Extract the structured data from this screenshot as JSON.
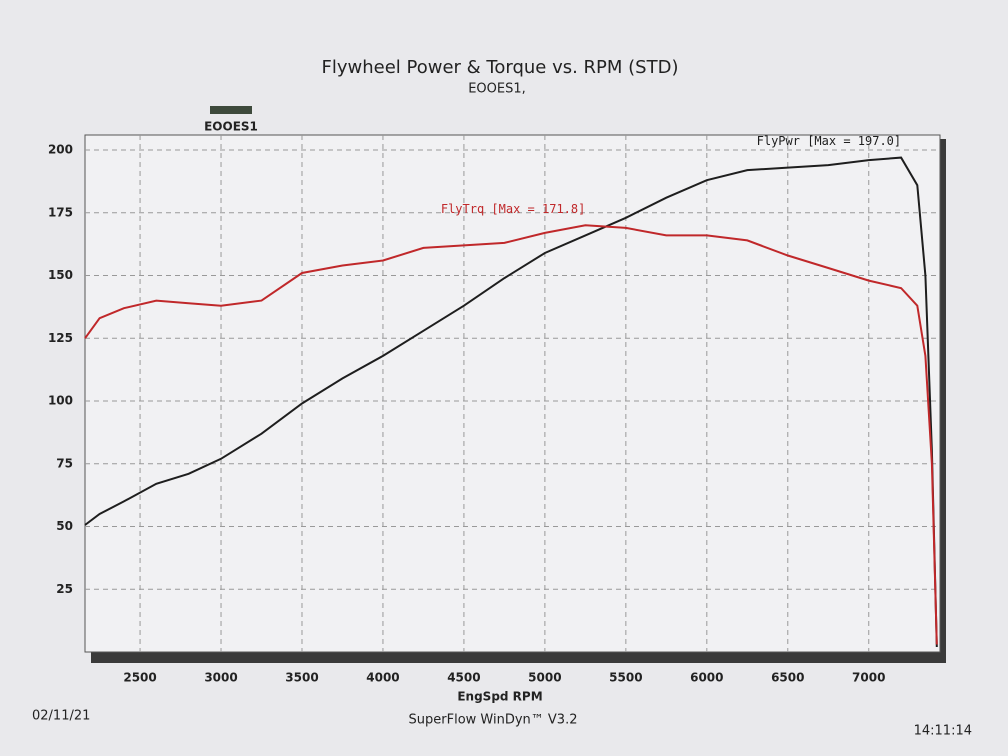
{
  "chart_data": {
    "type": "line",
    "title": "Flywheel Power & Torque vs. RPM (STD)",
    "subtitle": "EOOES1,",
    "run_label": "EOOES1",
    "run_color": "#3e4a3c",
    "x_label": "EngSpd RPM",
    "footer_date": "02/11/21",
    "footer_software": "SuperFlow WinDyn™ V3.2",
    "footer_time": "14:11:14",
    "x": [
      2160,
      2250,
      2400,
      2600,
      2800,
      3000,
      3250,
      3500,
      3750,
      4000,
      4250,
      4500,
      4750,
      5000,
      5250,
      5500,
      5750,
      6000,
      6250,
      6500,
      6750,
      7000,
      7200,
      7300,
      7350,
      7390,
      7420
    ],
    "series": [
      {
        "name": "FlyPwr [Max = 197.0]",
        "color": "#1e1e1e",
        "values": [
          50.6,
          55,
          60,
          67,
          71,
          77,
          87,
          99,
          109,
          118,
          128,
          138,
          149,
          159,
          166,
          173,
          181,
          188,
          192,
          193,
          194,
          196,
          197,
          186,
          150,
          80,
          2
        ]
      },
      {
        "name": "FlyTrq [Max = 171.8]",
        "color": "#c0282a",
        "values": [
          125,
          133,
          137,
          140,
          139,
          138,
          140,
          151,
          154,
          156,
          161,
          162,
          163,
          167,
          170,
          169,
          166,
          166,
          164,
          158,
          153,
          148,
          145,
          138,
          118,
          75,
          3
        ]
      }
    ],
    "xlim": [
      2160,
      7440
    ],
    "ylim": [
      0,
      206
    ],
    "xticks": [
      2500,
      3000,
      3500,
      4000,
      4500,
      5000,
      5500,
      6000,
      6500,
      7000
    ],
    "yticks": [
      25,
      50,
      75,
      100,
      125,
      150,
      175,
      200
    ],
    "grid": true
  }
}
